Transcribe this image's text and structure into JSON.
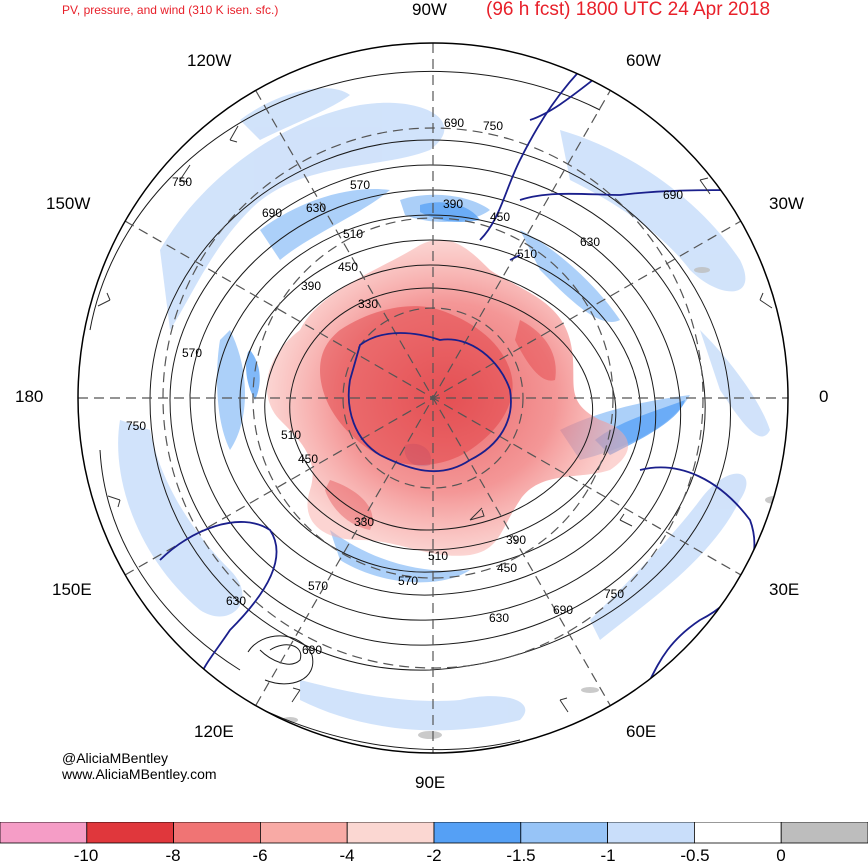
{
  "header": {
    "subtitle": "PV, pressure, and wind (310 K isen. sfc.)",
    "title": "(96 h fcst) 1800 UTC 24 Apr 2018"
  },
  "longitude_labels": {
    "w90": "90W",
    "w120": "120W",
    "w60": "60W",
    "w150": "150W",
    "w30": "30W",
    "lon180": "180",
    "lon0": "0",
    "e150": "150E",
    "e30": "30E",
    "e120": "120E",
    "e60": "60E",
    "e90": "90E"
  },
  "contour_labels": [
    "690",
    "750",
    "570",
    "750",
    "690",
    "630",
    "510",
    "390",
    "450",
    "390",
    "330",
    "570",
    "510",
    "450",
    "330",
    "510",
    "570",
    "570",
    "630",
    "630",
    "450",
    "390",
    "690",
    "750",
    "690",
    "630",
    "510",
    "750",
    "450",
    "690"
  ],
  "credit": {
    "handle": "@AliciaMBentley",
    "website": "www.AliciaMBentley.com"
  },
  "colorbar": {
    "colors": [
      "#f59dc6",
      "#e0373c",
      "#f07474",
      "#f8aaa5",
      "#fbd7d2",
      "#55a0f5",
      "#97c4f7",
      "#c9defa",
      "#ffffff",
      "#bdbdbd"
    ],
    "labels": [
      "-10",
      "-8",
      "-6",
      "-4",
      "-2",
      "-1.5",
      "-1",
      "-0.5",
      "0"
    ]
  }
}
